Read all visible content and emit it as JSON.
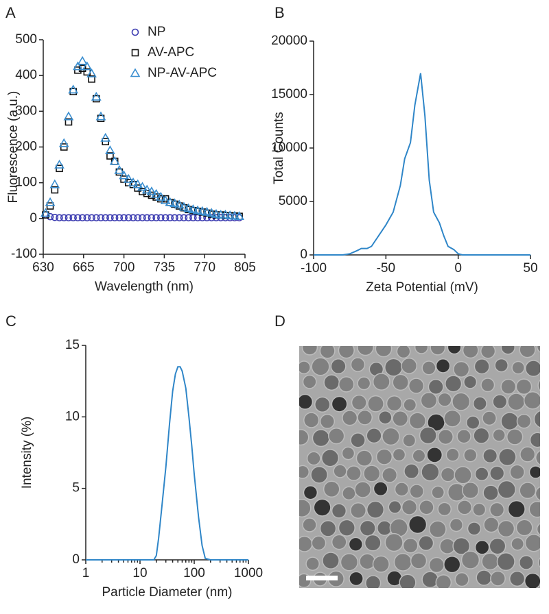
{
  "chart_data": [
    {
      "type": "scatter",
      "panel_label": "A",
      "xlabel": "Wavelength (nm)",
      "ylabel": "Fluorescence (a.u.)",
      "xlim": [
        630,
        805
      ],
      "xticks": [
        630,
        665,
        700,
        735,
        770,
        805
      ],
      "ylim": [
        -100,
        500
      ],
      "yticks": [
        -100,
        0,
        100,
        200,
        300,
        400,
        500
      ],
      "legend": "upper right",
      "x": [
        632,
        636,
        640,
        644,
        648,
        652,
        656,
        660,
        664,
        668,
        672,
        676,
        680,
        684,
        688,
        692,
        696,
        700,
        704,
        708,
        712,
        716,
        720,
        724,
        728,
        732,
        736,
        740,
        744,
        748,
        752,
        756,
        760,
        764,
        768,
        772,
        776,
        780,
        784,
        788,
        792,
        796,
        800
      ],
      "series": [
        {
          "name": "NP",
          "color": "#3b3bb0",
          "marker": "circle",
          "values": [
            10,
            5,
            3,
            2,
            2,
            2,
            2,
            2,
            2,
            2,
            2,
            2,
            2,
            2,
            2,
            2,
            2,
            2,
            2,
            2,
            2,
            2,
            2,
            2,
            2,
            2,
            2,
            2,
            2,
            2,
            2,
            2,
            2,
            2,
            2,
            2,
            2,
            2,
            2,
            2,
            2,
            2,
            2
          ]
        },
        {
          "name": "AV-APC",
          "color": "#111111",
          "marker": "square",
          "values": [
            10,
            35,
            80,
            140,
            200,
            270,
            355,
            415,
            420,
            410,
            390,
            335,
            280,
            215,
            175,
            160,
            130,
            110,
            100,
            95,
            85,
            75,
            70,
            65,
            60,
            55,
            55,
            45,
            40,
            35,
            30,
            25,
            22,
            20,
            18,
            15,
            12,
            10,
            10,
            8,
            8,
            7,
            6
          ]
        },
        {
          "name": "NP-AV-APC",
          "color": "#3a8ed0",
          "marker": "triangle",
          "values": [
            15,
            45,
            95,
            150,
            210,
            285,
            360,
            425,
            440,
            425,
            405,
            340,
            285,
            225,
            190,
            160,
            135,
            120,
            110,
            100,
            95,
            88,
            80,
            75,
            68,
            60,
            50,
            45,
            42,
            38,
            32,
            28,
            25,
            22,
            20,
            18,
            15,
            12,
            10,
            10,
            8,
            7,
            6
          ]
        }
      ]
    },
    {
      "type": "line",
      "panel_label": "B",
      "xlabel": "Zeta Potential (mV)",
      "ylabel": "Total Counts",
      "color": "#2f86c8",
      "xlim": [
        -100,
        50
      ],
      "xticks": [
        -100,
        -50,
        0,
        50
      ],
      "ylim": [
        0,
        20000
      ],
      "yticks": [
        0,
        5000,
        10000,
        15000,
        20000
      ],
      "x": [
        -100,
        -80,
        -75,
        -70,
        -67,
        -63,
        -60,
        -55,
        -50,
        -45,
        -40,
        -37,
        -33,
        -30,
        -26,
        -23,
        -20,
        -17,
        -13,
        -10,
        -7,
        -3,
        0,
        3,
        7,
        50
      ],
      "values": [
        0,
        0,
        100,
        400,
        600,
        600,
        800,
        1800,
        2800,
        4000,
        6500,
        9000,
        10500,
        14000,
        17000,
        13000,
        7000,
        4000,
        3000,
        1800,
        800,
        500,
        100,
        0,
        0,
        0
      ]
    },
    {
      "type": "line",
      "panel_label": "C",
      "xlabel": "Particle Diameter (nm)",
      "ylabel": "Intensity (%)",
      "color": "#2f86c8",
      "xlog": true,
      "xlim": [
        1,
        1000
      ],
      "xticks": [
        1,
        10,
        100,
        1000
      ],
      "xminorticks": [
        2,
        3,
        4,
        5,
        6,
        7,
        8,
        9,
        20,
        30,
        40,
        50,
        60,
        70,
        80,
        90,
        200,
        300,
        400,
        500,
        600,
        700,
        800,
        900
      ],
      "ylim": [
        0,
        15
      ],
      "yticks": [
        0,
        5,
        10,
        15
      ],
      "x": [
        1,
        2,
        5,
        10,
        15,
        18,
        20,
        22,
        25,
        30,
        35,
        40,
        45,
        50,
        55,
        60,
        70,
        80,
        90,
        100,
        120,
        140,
        160,
        200,
        500,
        1000
      ],
      "values": [
        0,
        0,
        0,
        0,
        0,
        0,
        0.3,
        1.5,
        3.5,
        6.5,
        9.5,
        11.8,
        13,
        13.5,
        13.5,
        13.2,
        12,
        10,
        8,
        6,
        3,
        1,
        0.1,
        0,
        0,
        0
      ]
    }
  ],
  "image_panel": {
    "panel_label": "D"
  }
}
